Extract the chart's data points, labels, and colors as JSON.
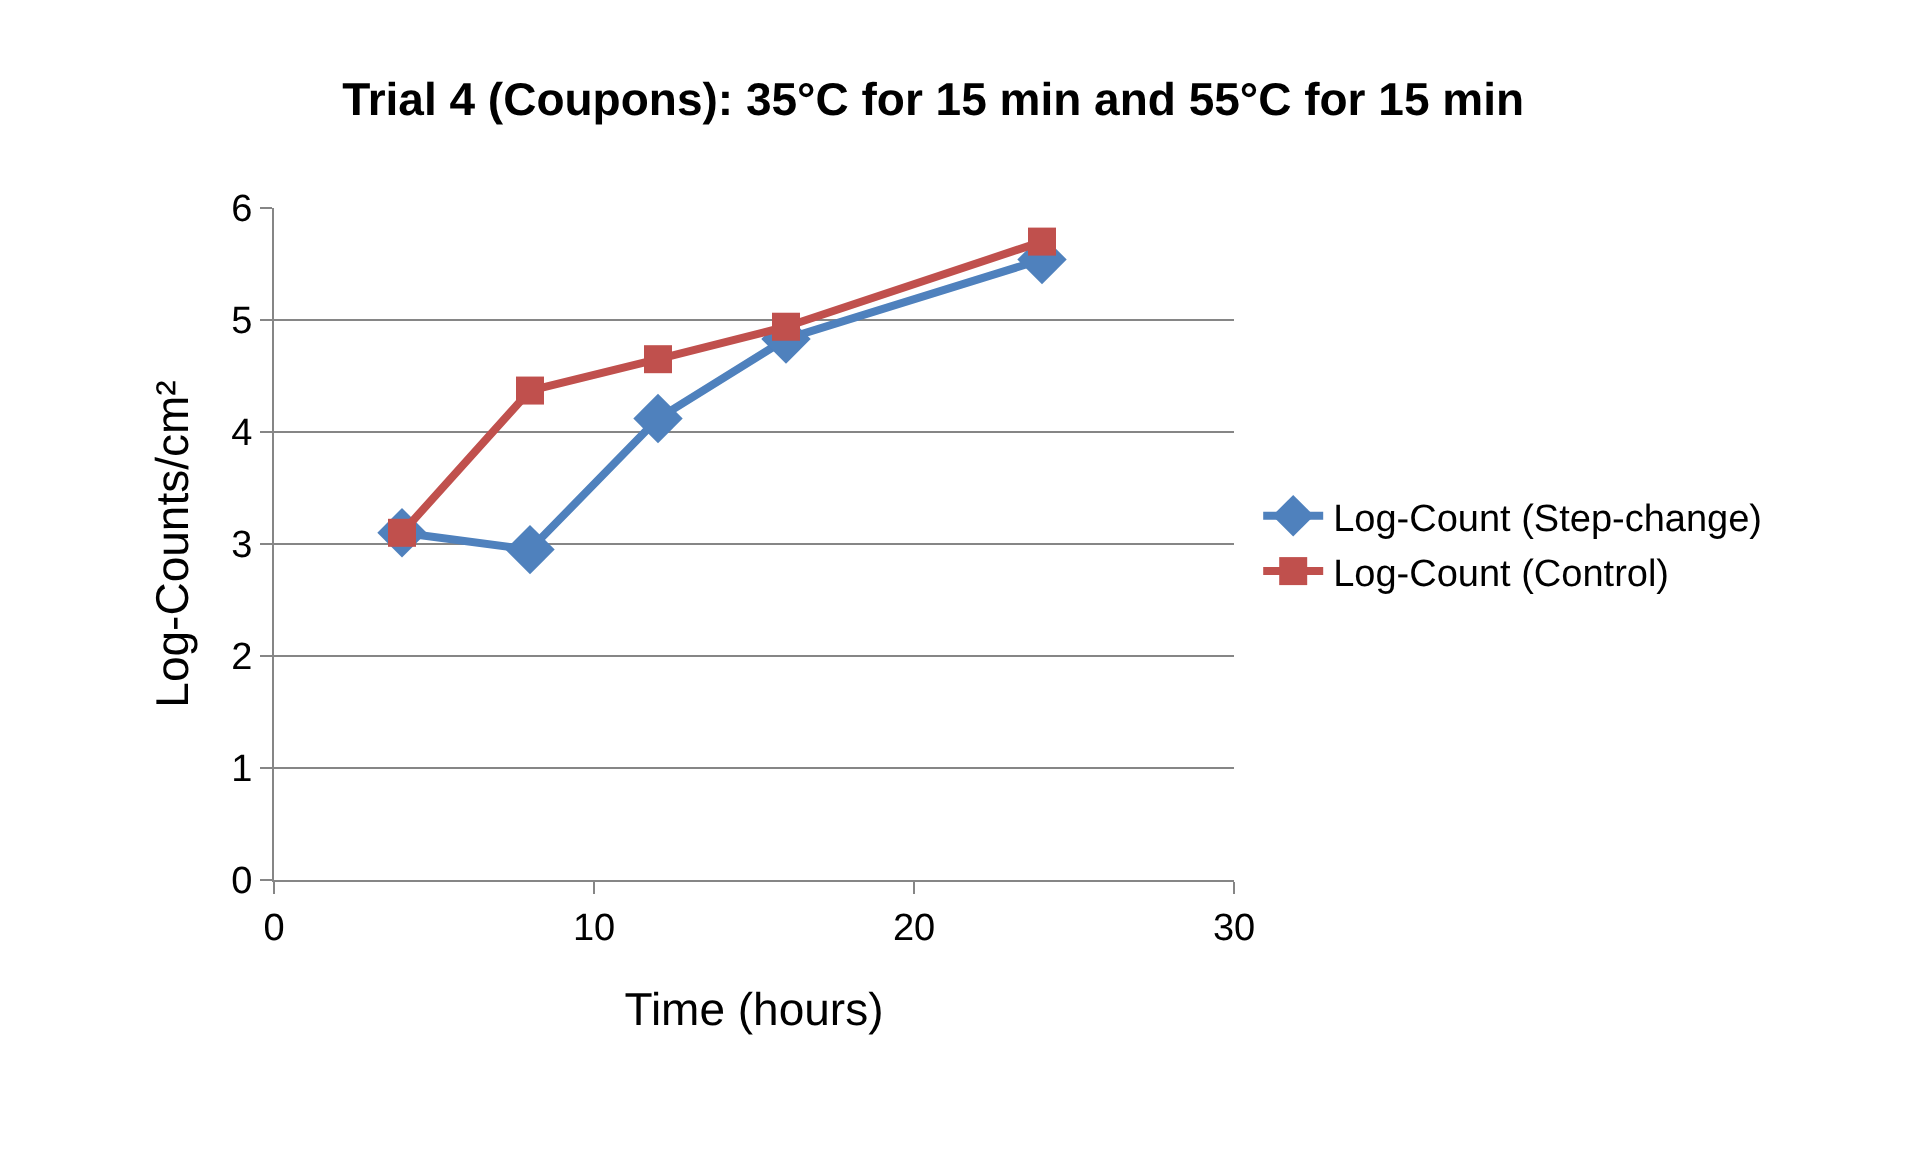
{
  "chart_data": {
    "type": "line",
    "title": "Trial 4 (Coupons): 35°C for 15 min and 55°C for 15 min",
    "xlabel": "Time (hours)",
    "ylabel": "Log-Counts/cm²",
    "x": [
      4,
      8,
      12,
      16,
      24
    ],
    "series": [
      {
        "name": "Log-Count (Step-change)",
        "color": "#4f81bd",
        "marker": "diamond",
        "values": [
          3.1,
          2.95,
          4.12,
          4.83,
          5.54
        ]
      },
      {
        "name": "Log-Count (Control)",
        "color": "#c0504d",
        "marker": "square",
        "values": [
          3.1,
          4.37,
          4.65,
          4.94,
          5.7
        ]
      }
    ],
    "xlim": [
      0,
      30
    ],
    "xticks": [
      0,
      10,
      20,
      30
    ],
    "ylim": [
      0,
      6
    ],
    "yticks": [
      0,
      1,
      2,
      3,
      4,
      5,
      6
    ],
    "grid": "y",
    "legend": "right",
    "line_style": "solid"
  }
}
